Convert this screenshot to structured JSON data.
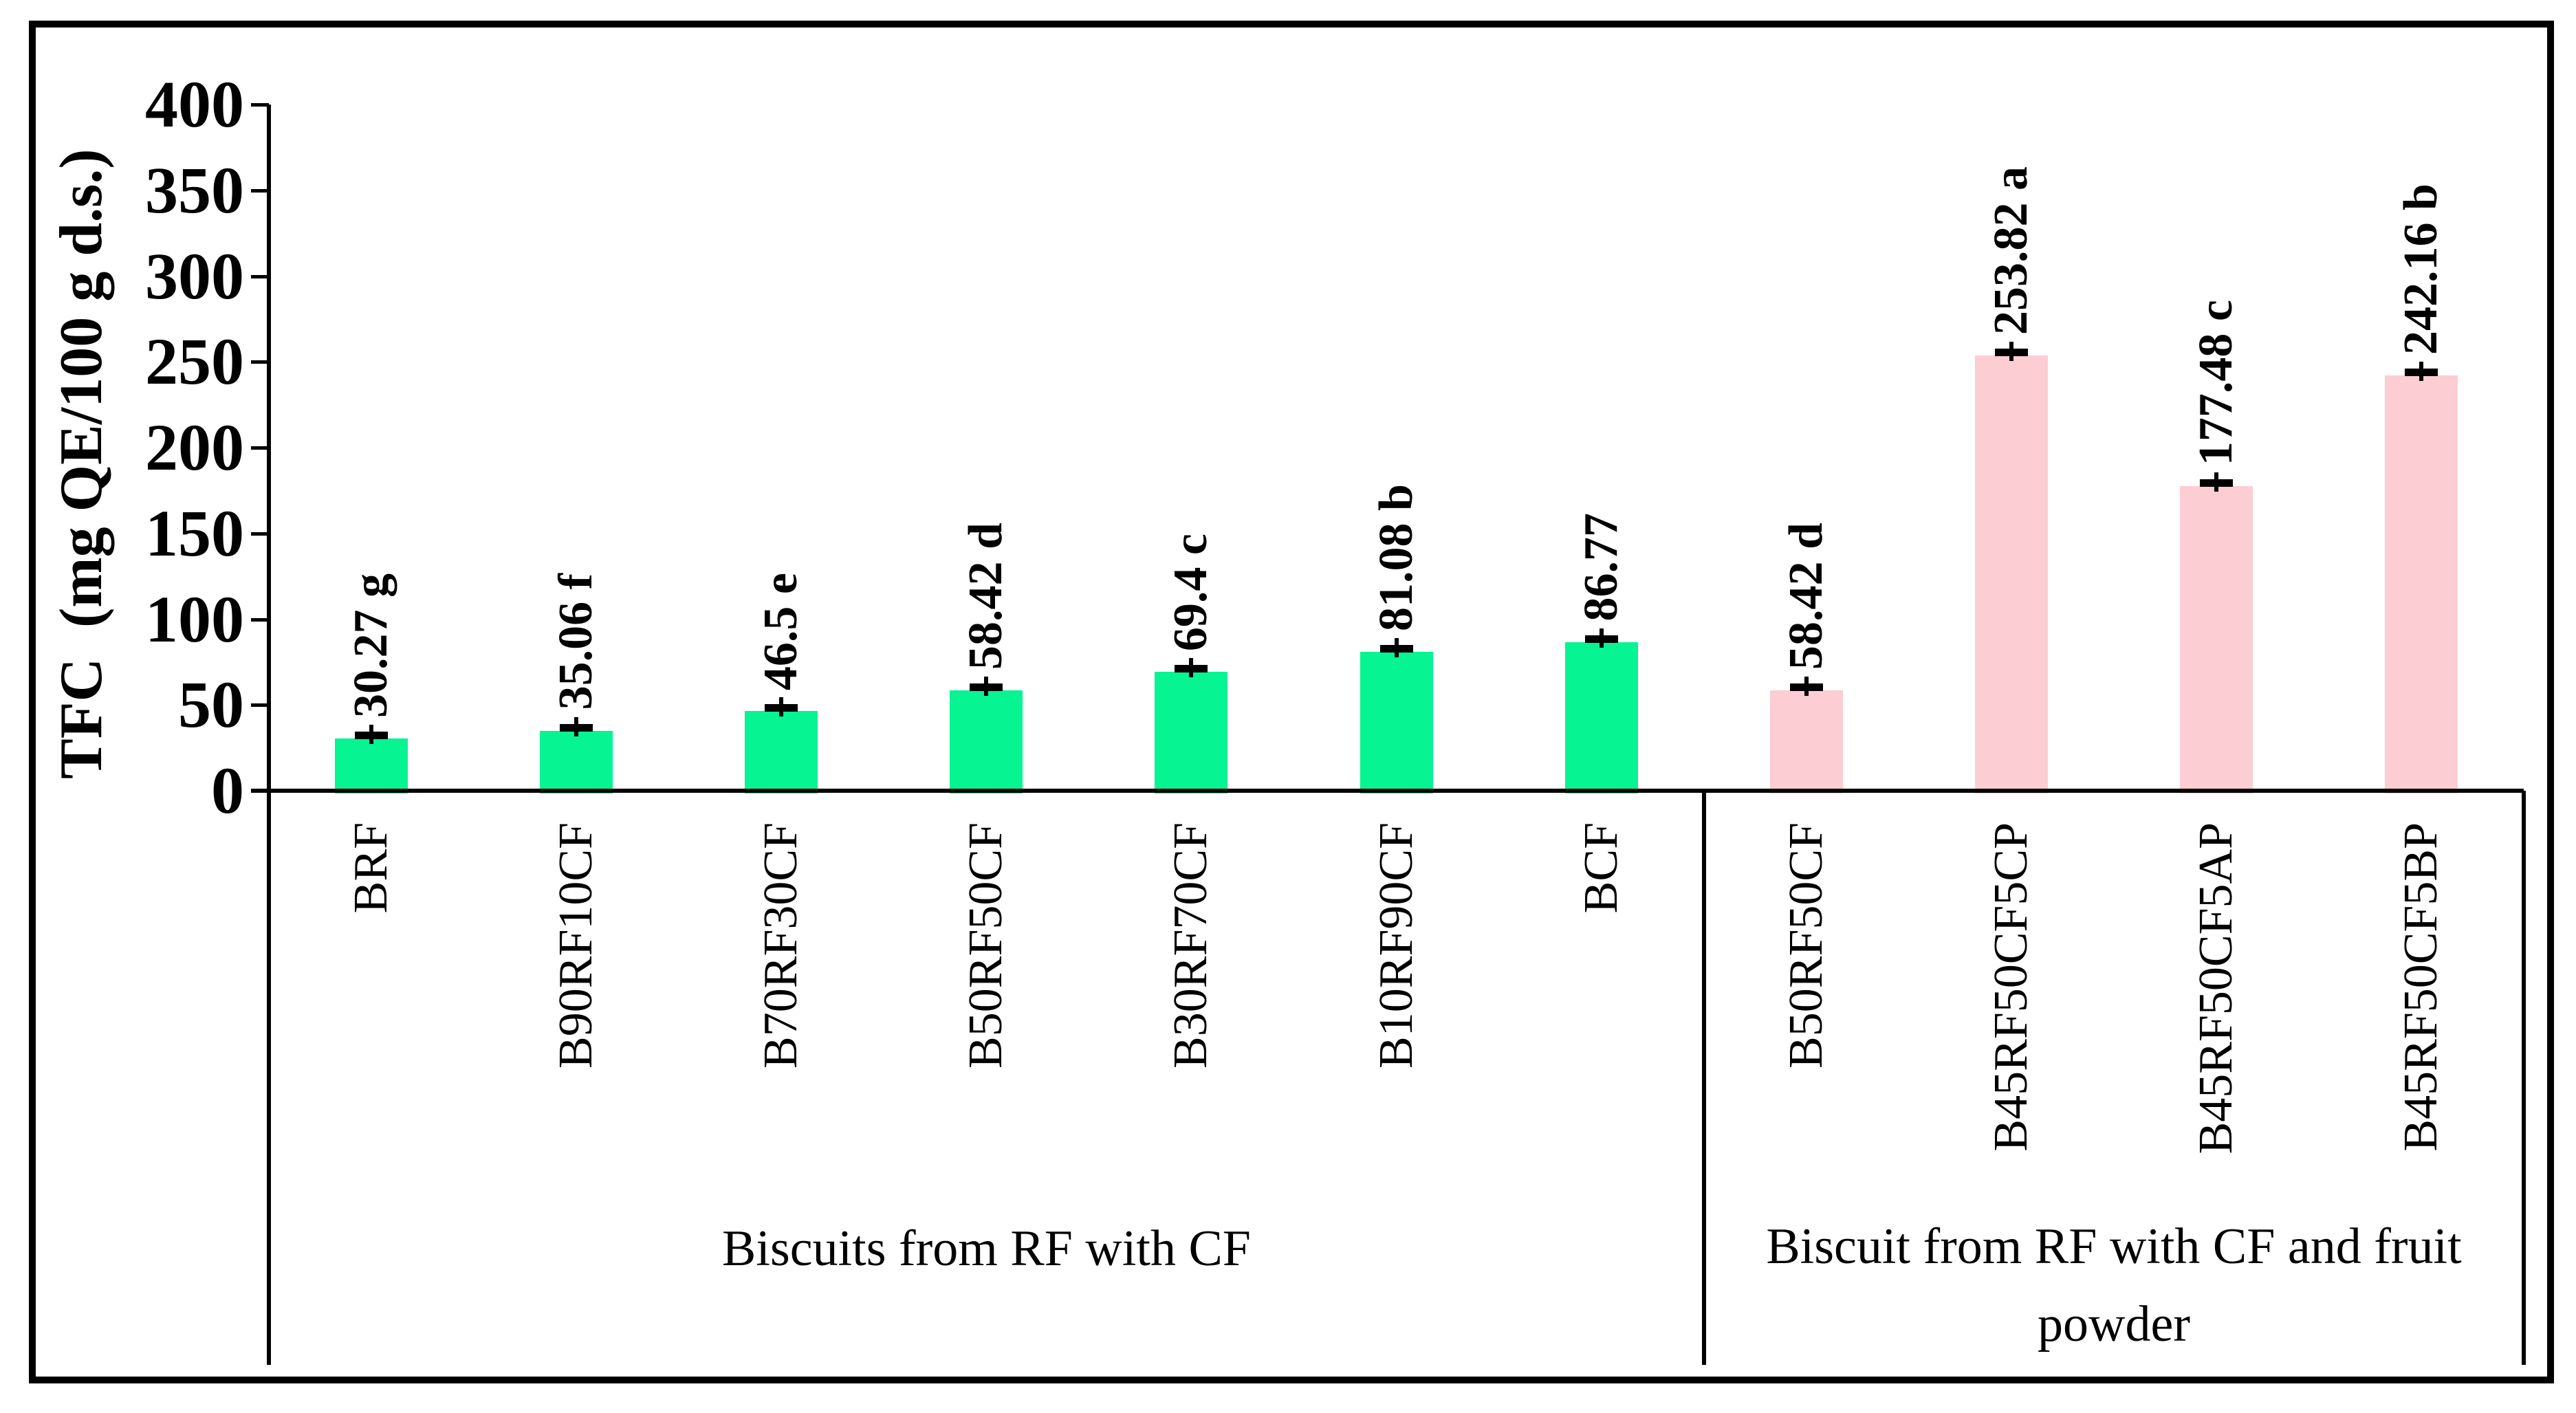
{
  "chart_data": {
    "type": "bar",
    "ylabel": "TFC  (mg QE/100 g d.s.)",
    "ylim": [
      0,
      400
    ],
    "yticks": [
      400,
      350,
      300,
      250,
      200,
      150,
      100,
      50,
      0
    ],
    "grid": false,
    "legend": false,
    "error_bars": true,
    "frame_color": "#000000",
    "background": "#ffffff",
    "groups": [
      {
        "label": "Biscuits from RF with CF",
        "color": "#06F492",
        "bars": [
          {
            "category": "BRF",
            "value": 30.27,
            "label": "30.27 g"
          },
          {
            "category": "B90RF10CF",
            "value": 35.06,
            "label": "35.06 f"
          },
          {
            "category": "B70RF30CF",
            "value": 46.5,
            "label": "46.5 e"
          },
          {
            "category": "B50RF50CF",
            "value": 58.42,
            "label": "58.42 d"
          },
          {
            "category": "B30RF70CF",
            "value": 69.4,
            "label": "69.4 c"
          },
          {
            "category": "B10RF90CF",
            "value": 81.08,
            "label": "81.08 b"
          },
          {
            "category": "BCF",
            "value": 86.77,
            "label": "86.77"
          }
        ]
      },
      {
        "label": "Biscuit from RF with CF and fruit powder",
        "color": "#FCCDD3",
        "bars": [
          {
            "category": "B50RF50CF",
            "value": 58.42,
            "label": "58.42 d"
          },
          {
            "category": "B45RF50CF5CP",
            "value": 253.82,
            "label": "253.82 a"
          },
          {
            "category": "B45RF50CF5AP",
            "value": 177.48,
            "label": "177.48 c"
          },
          {
            "category": "B45RF50CF5BP",
            "value": 242.16,
            "label": "242.16 b"
          }
        ]
      }
    ]
  }
}
